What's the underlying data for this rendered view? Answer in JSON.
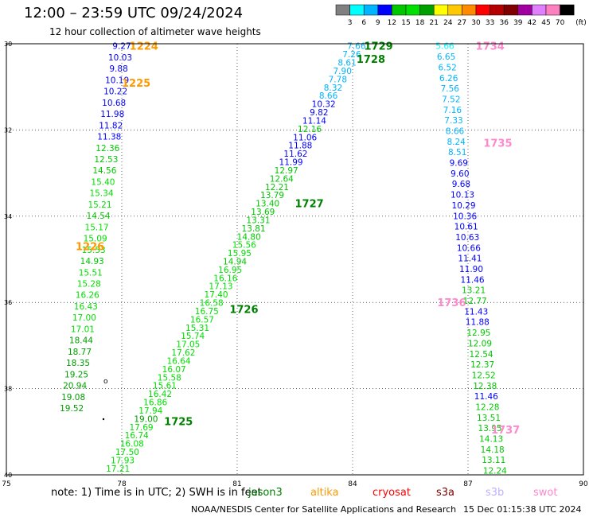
{
  "header": {
    "title": "12:00 – 23:59 UTC 09/24/2024",
    "subtitle": "12 hour collection of altimeter wave heights"
  },
  "legend": {
    "unit": "(ft)",
    "bins": [
      {
        "label": "3",
        "color": "#808080"
      },
      {
        "label": "6",
        "color": "#00ffff"
      },
      {
        "label": "9",
        "color": "#00b4ff"
      },
      {
        "label": "12",
        "color": "#0000ff"
      },
      {
        "label": "15",
        "color": "#00c800"
      },
      {
        "label": "18",
        "color": "#00e000"
      },
      {
        "label": "21",
        "color": "#00a000"
      },
      {
        "label": "24",
        "color": "#ffff00"
      },
      {
        "label": "27",
        "color": "#ffc800"
      },
      {
        "label": "30",
        "color": "#ff8c00"
      },
      {
        "label": "33",
        "color": "#ff0000"
      },
      {
        "label": "36",
        "color": "#b40000"
      },
      {
        "label": "39",
        "color": "#800000"
      },
      {
        "label": "42",
        "color": "#a000a0"
      },
      {
        "label": "45",
        "color": "#e080ff"
      },
      {
        "label": "70",
        "color": "#ff80c0"
      },
      {
        "label": "",
        "color": "#000000"
      }
    ]
  },
  "axes": {
    "lon_ticks": [
      "75",
      "78",
      "81",
      "84",
      "87",
      "90"
    ],
    "lat_ticks": [
      "30",
      "32",
      "34",
      "36",
      "38",
      "40"
    ],
    "lon_range": [
      75,
      90
    ],
    "lat_range": [
      30,
      40
    ]
  },
  "passes": [
    {
      "time": "1224",
      "color": "#ff9900",
      "lon": 78.2,
      "lat": 30.05
    },
    {
      "time": "1225",
      "color": "#ff9900",
      "lon": 78.0,
      "lat": 30.9
    },
    {
      "time": "1226",
      "color": "#ff9900",
      "lon": 76.8,
      "lat": 34.7
    },
    {
      "time": "1725",
      "color": "#008000",
      "lon": 79.1,
      "lat": 38.75
    },
    {
      "time": "1726",
      "color": "#008000",
      "lon": 80.8,
      "lat": 36.15
    },
    {
      "time": "1727",
      "color": "#008000",
      "lon": 82.5,
      "lat": 33.7
    },
    {
      "time": "1728",
      "color": "#008000",
      "lon": 84.1,
      "lat": 30.35
    },
    {
      "time": "1729",
      "color": "#008000",
      "lon": 84.3,
      "lat": 30.05
    },
    {
      "time": "1734",
      "color": "#ff88cc",
      "lon": 87.2,
      "lat": 30.05
    },
    {
      "time": "1735",
      "color": "#ff88cc",
      "lon": 87.4,
      "lat": 32.3
    },
    {
      "time": "1736",
      "color": "#ff88cc",
      "lon": 86.2,
      "lat": 36.0
    },
    {
      "time": "1737",
      "color": "#ff88cc",
      "lon": 87.6,
      "lat": 38.95
    }
  ],
  "tracks": [
    {
      "name": "1224-1226",
      "lon_start": 78.0,
      "lat_start": 30.05,
      "lon_end": 76.7,
      "lat_end": 38.45,
      "values": [
        "9.27",
        "10.03",
        "9.88",
        "10.19",
        "10.22",
        "10.68",
        "11.98",
        "11.82",
        "11.38",
        "12.36",
        "12.53",
        "14.56",
        "15.40",
        "15.34",
        "15.21",
        "14.54",
        "15.17",
        "15.09",
        "15.53",
        "14.93",
        "15.51",
        "15.28",
        "16.26",
        "16.43",
        "17.00",
        "17.01",
        "18.44",
        "18.77",
        "18.35",
        "19.25",
        "20.94",
        "19.08",
        "19.52"
      ]
    },
    {
      "name": "1725-1729",
      "lon_start": 84.1,
      "lat_start": 30.05,
      "lon_end": 77.9,
      "lat_end": 39.85,
      "values": [
        "7.66",
        "7.26",
        "8.61",
        "7.90",
        "7.78",
        "8.32",
        "8.66",
        "10.32",
        "9.82",
        "11.14",
        "12.16",
        "11.06",
        "11.88",
        "11.62",
        "11.99",
        "12.97",
        "12.64",
        "12.21",
        "13.79",
        "13.40",
        "13.69",
        "13.31",
        "13.81",
        "14.80",
        "15.56",
        "15.95",
        "14.94",
        "16.95",
        "16.16",
        "17.13",
        "17.40",
        "16.58",
        "16.75",
        "16.57",
        "15.31",
        "15.74",
        "17.05",
        "17.62",
        "16.64",
        "16.07",
        "15.58",
        "15.61",
        "16.42",
        "16.86",
        "17.94",
        "19.00",
        "17.69",
        "16.74",
        "16.08",
        "17.50",
        "17.93",
        "17.21"
      ]
    },
    {
      "name": "1734-1737",
      "lon_start": 86.4,
      "lat_start": 30.05,
      "lon_end": 87.7,
      "lat_end": 39.9,
      "values": [
        "5.66",
        "6.65",
        "6.52",
        "6.26",
        "7.56",
        "7.52",
        "7.16",
        "7.33",
        "8.66",
        "8.24",
        "8.51",
        "9.69",
        "9.60",
        "9.68",
        "10.13",
        "10.29",
        "10.36",
        "10.61",
        "10.63",
        "10.66",
        "11.41",
        "11.90",
        "11.46",
        "13.21",
        "12.77",
        "11.43",
        "11.88",
        "12.95",
        "12.09",
        "12.54",
        "12.37",
        "12.52",
        "12.38",
        "11.46",
        "12.28",
        "13.51",
        "13.95",
        "14.13",
        "14.18",
        "13.11",
        "12.24"
      ]
    }
  ],
  "note": {
    "text": "note: 1) Time is in UTC; 2) SWH is in feet",
    "satellites": [
      {
        "name": "jason3",
        "color": "#008000"
      },
      {
        "name": "altika",
        "color": "#ff9900"
      },
      {
        "name": "cryosat",
        "color": "#ff0000"
      },
      {
        "name": "s3a",
        "color": "#800000"
      },
      {
        "name": "s3b",
        "color": "#c0b0ff"
      },
      {
        "name": "swot",
        "color": "#ff88cc"
      }
    ]
  },
  "footer": {
    "credit": "NOAA/NESDIS Center for Satellite Applications and Research",
    "timestamp": "15 Dec 01:15:38 UTC 2024"
  }
}
